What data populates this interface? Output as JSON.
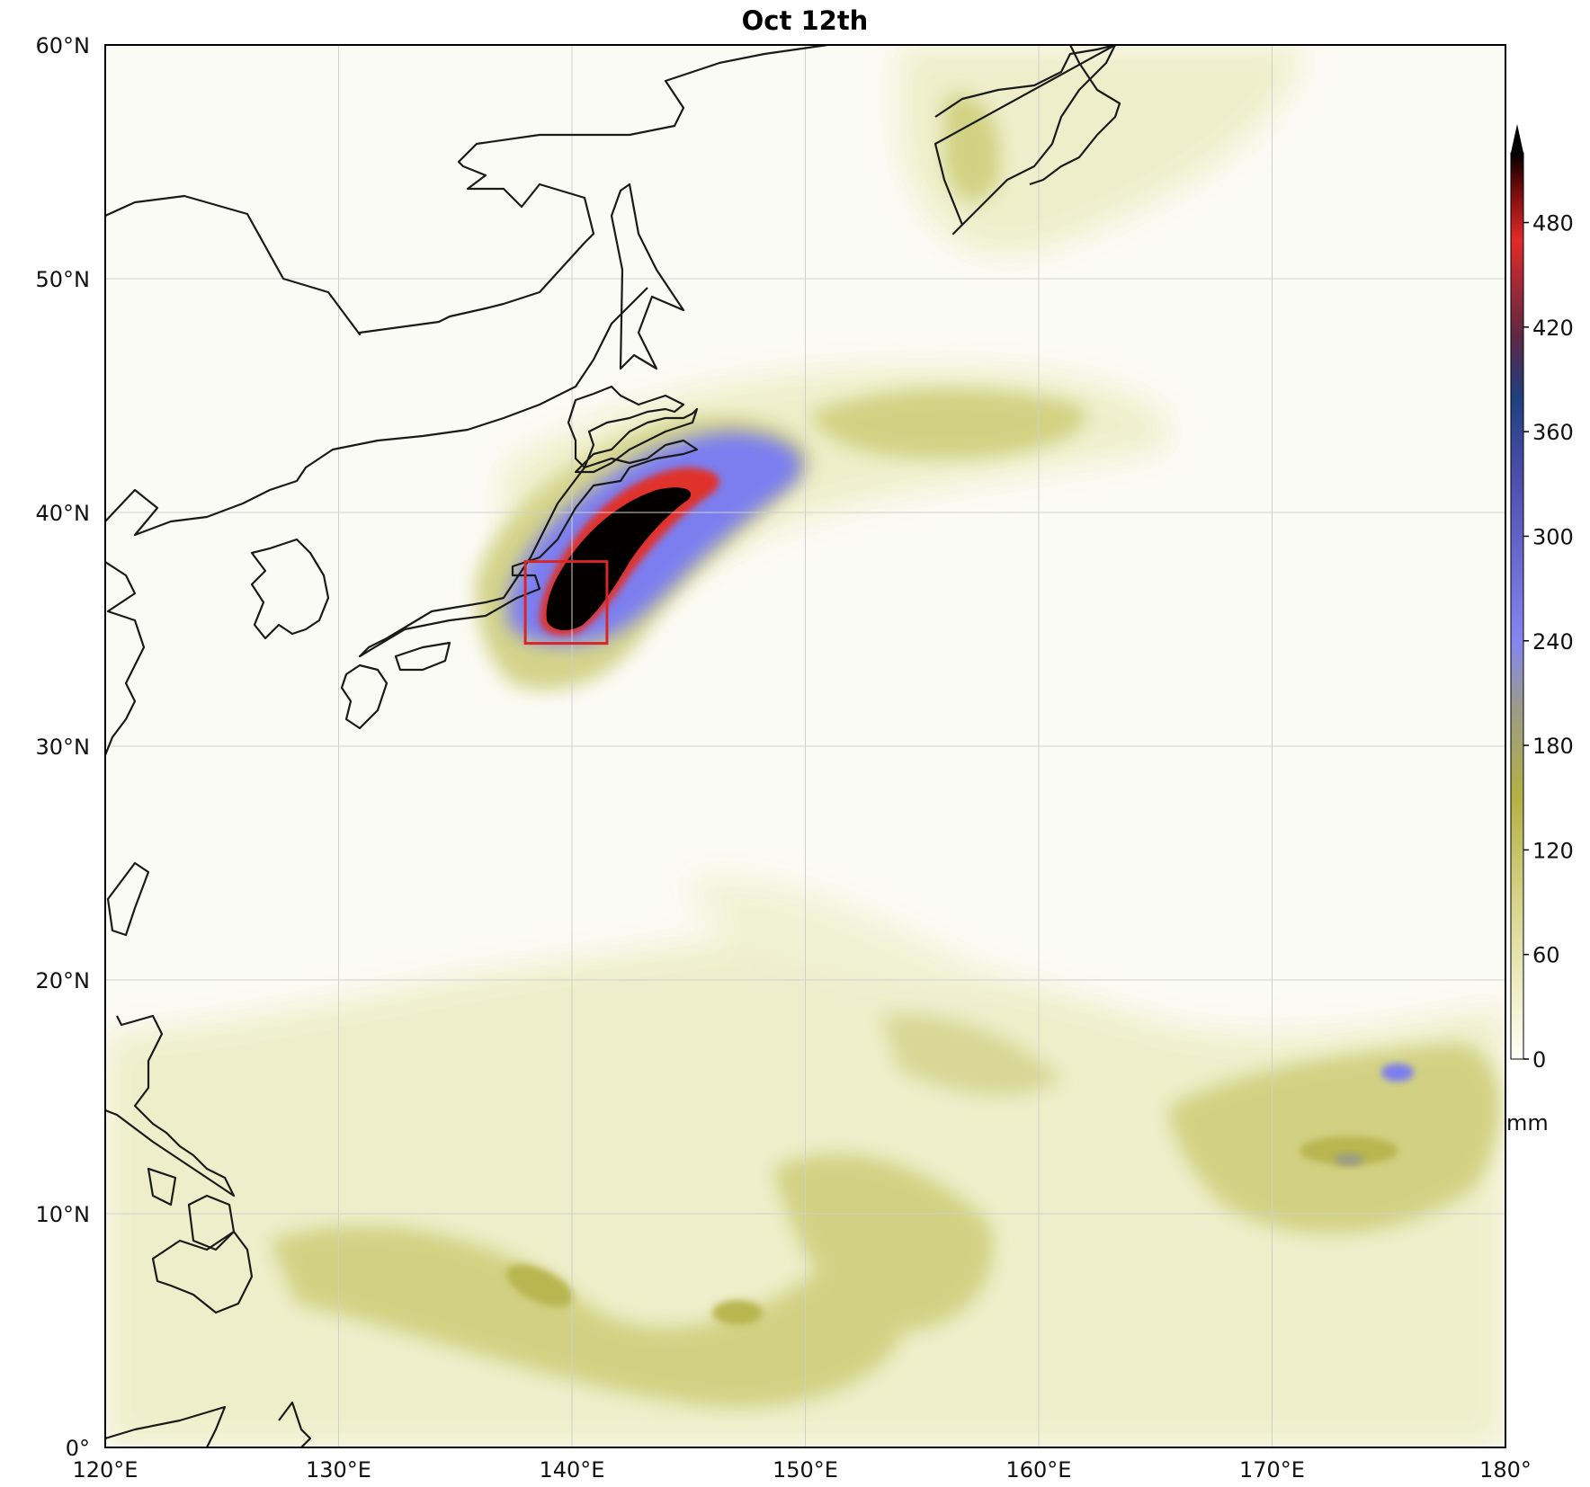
{
  "title": "Oct 12th",
  "map": {
    "extent": {
      "lon": [
        120,
        180
      ],
      "lat": [
        0,
        60
      ]
    },
    "lon_ticks": [
      {
        "value": 120,
        "label": "120°E"
      },
      {
        "value": 130,
        "label": "130°E"
      },
      {
        "value": 140,
        "label": "140°E"
      },
      {
        "value": 150,
        "label": "150°E"
      },
      {
        "value": 160,
        "label": "160°E"
      },
      {
        "value": 170,
        "label": "170°E"
      },
      {
        "value": 180,
        "label": "180°"
      }
    ],
    "lat_ticks": [
      {
        "value": 0,
        "label": "0°"
      },
      {
        "value": 10,
        "label": "10°N"
      },
      {
        "value": 20,
        "label": "20°N"
      },
      {
        "value": 30,
        "label": "30°N"
      },
      {
        "value": 40,
        "label": "40°N"
      },
      {
        "value": 50,
        "label": "50°N"
      },
      {
        "value": 60,
        "label": "60°N"
      }
    ],
    "gridlines": true,
    "highlight_box": {
      "lon": [
        138,
        141.5
      ],
      "lat": [
        34.4,
        37.9
      ],
      "color": "#d62728"
    },
    "field_colors": {
      "background": "#fbfbf5",
      "light": "#eeeec8",
      "olive": "#d2d183",
      "olive_dark": "#b8b650",
      "blue": "#7c7ef0",
      "red": "#e0302a",
      "black": "#050000"
    }
  },
  "colorbar": {
    "unit": "mm",
    "min": 0,
    "max": 520,
    "extend": "max",
    "ticks": [
      {
        "value": 0,
        "label": "0"
      },
      {
        "value": 60,
        "label": "60"
      },
      {
        "value": 120,
        "label": "120"
      },
      {
        "value": 180,
        "label": "180"
      },
      {
        "value": 240,
        "label": "240"
      },
      {
        "value": 300,
        "label": "300"
      },
      {
        "value": 360,
        "label": "360"
      },
      {
        "value": 420,
        "label": "420"
      },
      {
        "value": 480,
        "label": "480"
      }
    ],
    "stops": [
      {
        "value": 0,
        "color": "#fefef6"
      },
      {
        "value": 40,
        "color": "#eeeec6"
      },
      {
        "value": 90,
        "color": "#d6d48a"
      },
      {
        "value": 150,
        "color": "#b3b144"
      },
      {
        "value": 200,
        "color": "#9c9c86"
      },
      {
        "value": 240,
        "color": "#8585f2"
      },
      {
        "value": 330,
        "color": "#5050b0"
      },
      {
        "value": 380,
        "color": "#1f3f7f"
      },
      {
        "value": 415,
        "color": "#5e2845"
      },
      {
        "value": 470,
        "color": "#e02a2a"
      },
      {
        "value": 500,
        "color": "#6e0a0a"
      },
      {
        "value": 520,
        "color": "#000000"
      }
    ]
  }
}
